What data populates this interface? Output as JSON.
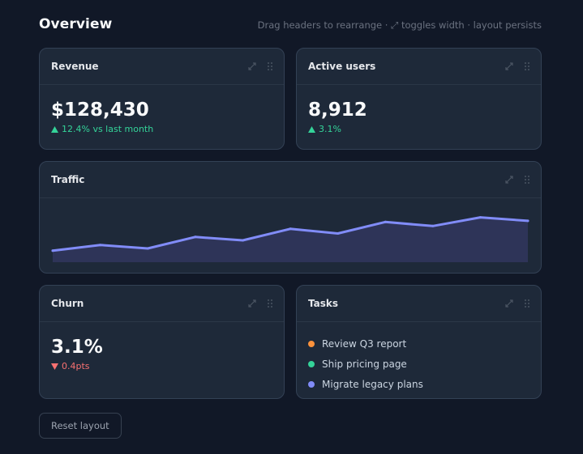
{
  "header": {
    "title": "Overview",
    "hint": "Drag headers to rearrange · ⤢ toggles width · layout persists"
  },
  "colors": {
    "accent": "#818cf8",
    "up": "#34d399",
    "down": "#f87171",
    "task_orange": "#fb923c",
    "task_green": "#34d399",
    "task_purple": "#818cf8"
  },
  "cards": {
    "revenue": {
      "title": "Revenue",
      "value": "$128,430",
      "delta_icon": "triangle-up-icon",
      "delta": "12.4% vs last month"
    },
    "active_users": {
      "title": "Active users",
      "value": "8,912",
      "delta_icon": "triangle-up-icon",
      "delta": "3.1%"
    },
    "traffic": {
      "title": "Traffic"
    },
    "churn": {
      "title": "Churn",
      "value": "3.1%",
      "delta_icon": "triangle-down-icon",
      "delta": "0.4pts"
    },
    "tasks": {
      "title": "Tasks",
      "items": [
        {
          "label": "Review Q3 report",
          "color": "#fb923c"
        },
        {
          "label": "Ship pricing page",
          "color": "#34d399"
        },
        {
          "label": "Migrate legacy plans",
          "color": "#818cf8"
        }
      ]
    }
  },
  "icons": {
    "expand": "expand-icon",
    "drag": "drag-handle-icon"
  },
  "chart_data": {
    "type": "area",
    "title": "",
    "xlabel": "",
    "ylabel": "",
    "grid": false,
    "x": [
      1,
      2,
      3,
      4,
      5,
      6,
      7,
      8,
      9,
      10,
      11
    ],
    "values": [
      20,
      30,
      24,
      44,
      38,
      58,
      50,
      70,
      63,
      78,
      72
    ],
    "ylim": [
      0,
      100
    ]
  },
  "footer": {
    "reset_label": "Reset layout"
  }
}
